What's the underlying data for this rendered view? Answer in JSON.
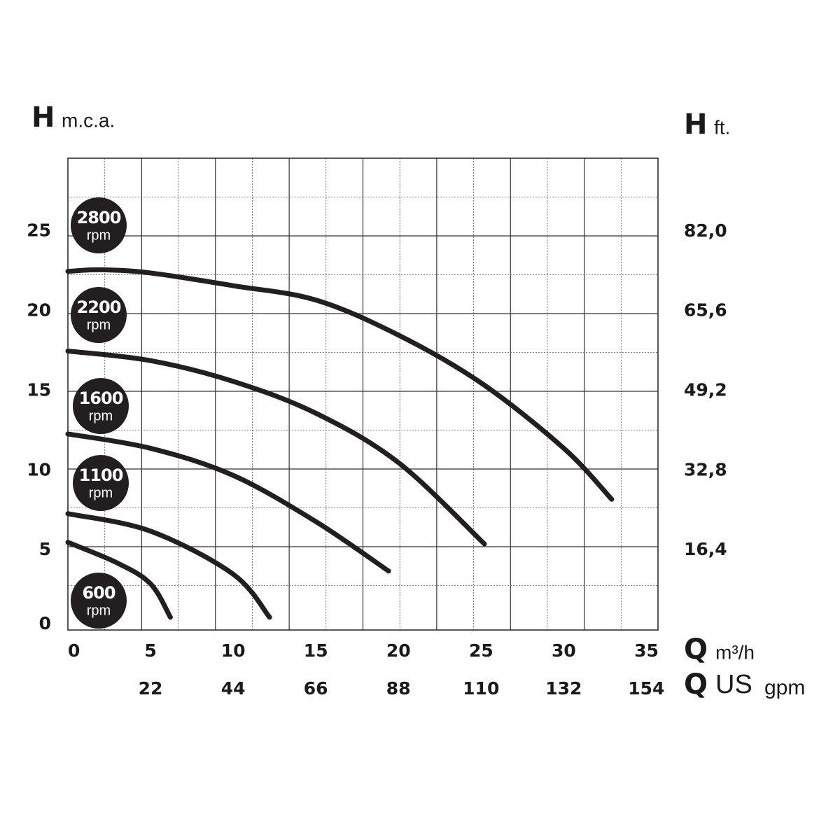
{
  "chart_data": {
    "type": "line",
    "y_label": {
      "symbol": "H",
      "unit": "m.c.a."
    },
    "y2_label": {
      "symbol": "H",
      "unit": "ft."
    },
    "x_label": {
      "symbol": "Q",
      "unit": "m³/h"
    },
    "x2_label": {
      "symbol": "Q",
      "unit_a": "US",
      "unit_b": "gpm"
    },
    "xlim": [
      0,
      35.7
    ],
    "xticks": [
      0,
      5,
      10,
      15,
      20,
      25,
      30,
      35
    ],
    "x2lim": [
      0,
      157.1
    ],
    "x2ticks": [
      22,
      44,
      66,
      88,
      110,
      132,
      154
    ],
    "ylim": [
      0,
      29.6
    ],
    "yticks": [
      0,
      5,
      10,
      15,
      20,
      25
    ],
    "y2lim": [
      0,
      97.1
    ],
    "y2ticks": [
      {
        "value": 16.4,
        "label": "16,4"
      },
      {
        "value": 32.8,
        "label": "32,8"
      },
      {
        "value": 49.2,
        "label": "49,2"
      },
      {
        "value": 65.6,
        "label": "65,6"
      },
      {
        "value": 82.0,
        "label": "82,0"
      }
    ],
    "grid": true,
    "speed_unit": "rpm",
    "series": [
      {
        "name": "2800",
        "color": "#231f20",
        "x": [
          0,
          2,
          5,
          10,
          15,
          20,
          25,
          30,
          32.9
        ],
        "values": [
          22.5,
          22.6,
          22.4,
          21.6,
          20.7,
          18.5,
          15.5,
          11.4,
          8.2
        ]
      },
      {
        "name": "2200",
        "color": "#231f20",
        "x": [
          0,
          5,
          10,
          15,
          20,
          25.2
        ],
        "values": [
          17.5,
          16.9,
          15.6,
          13.6,
          10.5,
          5.4
        ]
      },
      {
        "name": "1600",
        "color": "#231f20",
        "x": [
          0,
          5,
          10,
          15,
          19.4
        ],
        "values": [
          12.3,
          11.4,
          9.7,
          6.8,
          3.7
        ]
      },
      {
        "name": "1100",
        "color": "#231f20",
        "x": [
          0,
          5,
          10,
          12.2
        ],
        "values": [
          7.3,
          6.2,
          3.5,
          0.8
        ]
      },
      {
        "name": "600",
        "color": "#231f20",
        "x": [
          0,
          3,
          5,
          6.2
        ],
        "values": [
          5.5,
          4.2,
          2.9,
          0.8
        ]
      }
    ]
  }
}
